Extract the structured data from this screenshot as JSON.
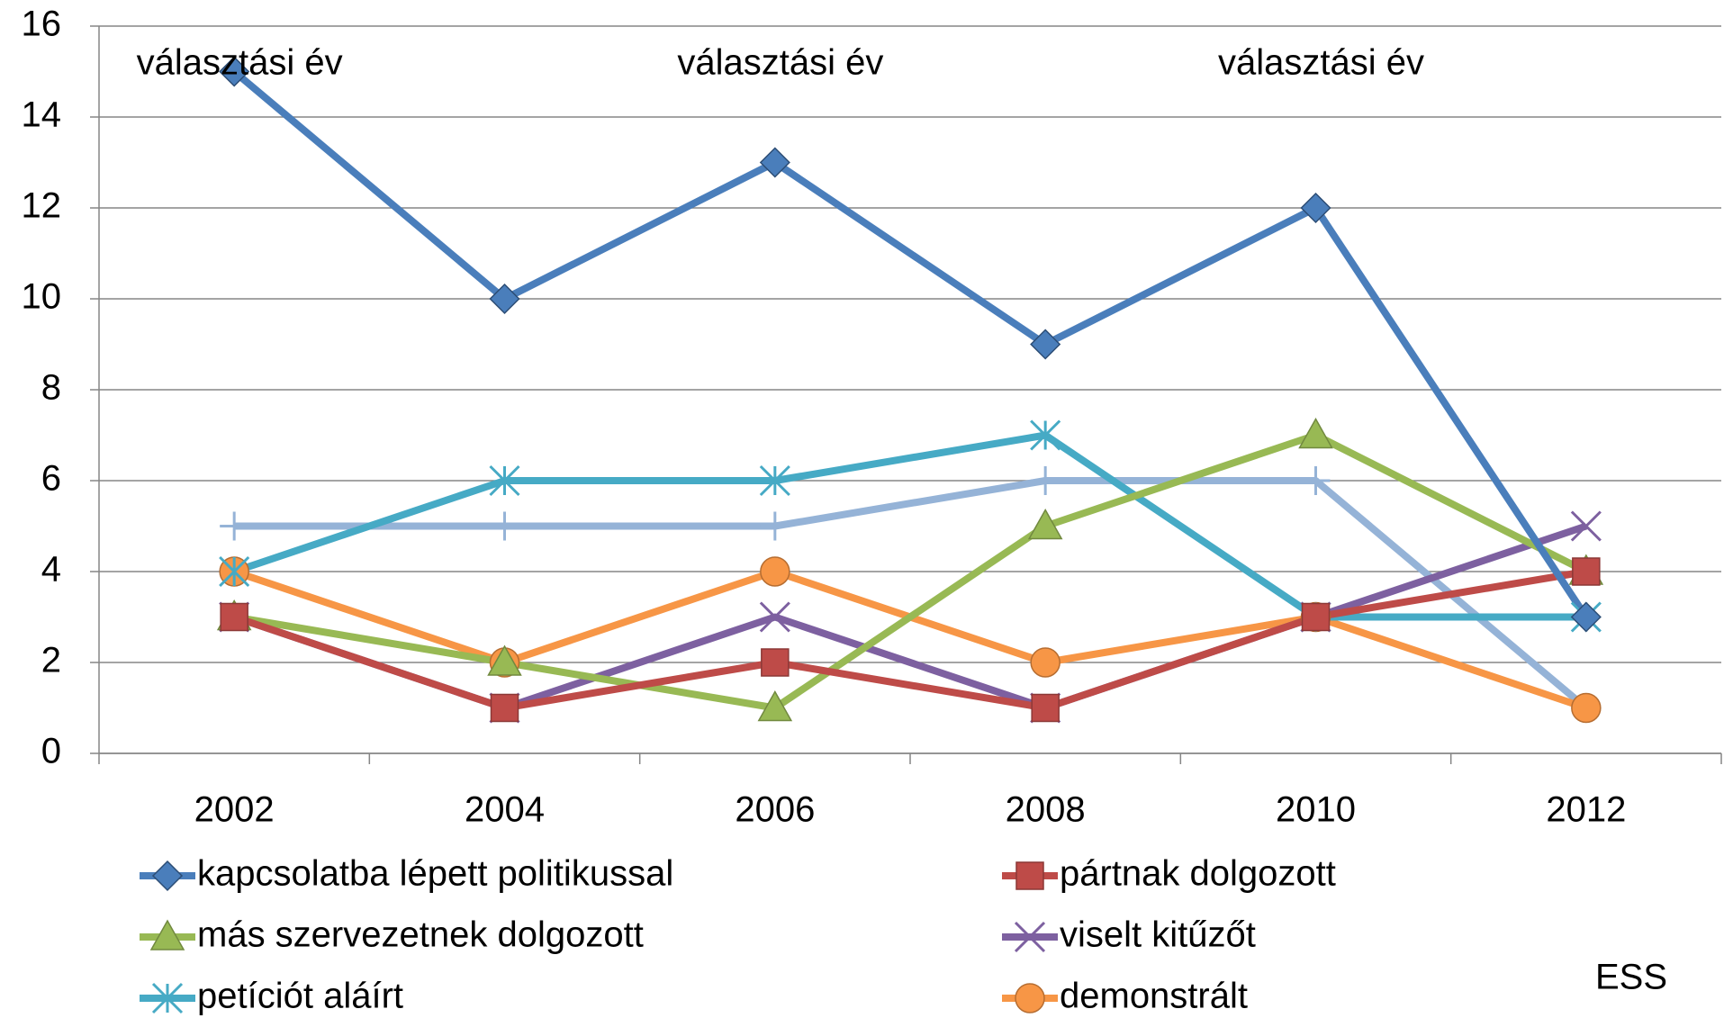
{
  "chart_data": {
    "type": "line",
    "categories": [
      "2002",
      "2004",
      "2006",
      "2008",
      "2010",
      "2012"
    ],
    "series": [
      {
        "name": "kapcsolatba lépett politikussal",
        "color": "#4a7ebb",
        "marker": "diamond",
        "values": [
          15,
          10,
          13,
          9,
          12,
          3
        ]
      },
      {
        "name": "pártnak dolgozott",
        "color": "#be4b48",
        "marker": "square",
        "values": [
          3,
          1,
          2,
          1,
          3,
          4
        ]
      },
      {
        "name": "más szervezetnek dolgozott",
        "color": "#98b954",
        "marker": "triangle",
        "values": [
          3,
          2,
          1,
          5,
          7,
          4
        ]
      },
      {
        "name": "viselt kitűzőt",
        "color": "#7d60a0",
        "marker": "x",
        "values": [
          3,
          1,
          3,
          1,
          3,
          5
        ]
      },
      {
        "name": "petíciót aláírt",
        "color": "#46aac5",
        "marker": "star",
        "values": [
          4,
          6,
          6,
          7,
          3,
          3
        ]
      },
      {
        "name": "demonstrált",
        "color": "#f79646",
        "marker": "circle",
        "values": [
          4,
          2,
          4,
          2,
          3,
          1
        ]
      },
      {
        "color": "#95b3d7",
        "marker": "plus",
        "values": [
          5,
          5,
          5,
          6,
          6,
          1
        ]
      }
    ],
    "ylim": [
      0,
      16
    ],
    "yticks": [
      0,
      2,
      4,
      6,
      8,
      10,
      12,
      14,
      16
    ],
    "grid": true,
    "annotations": [
      {
        "text": "választási év",
        "x": "2002"
      },
      {
        "text": "választási év",
        "x": "2006"
      },
      {
        "text": "választási év",
        "x": "2010"
      }
    ],
    "source": "ESS"
  }
}
